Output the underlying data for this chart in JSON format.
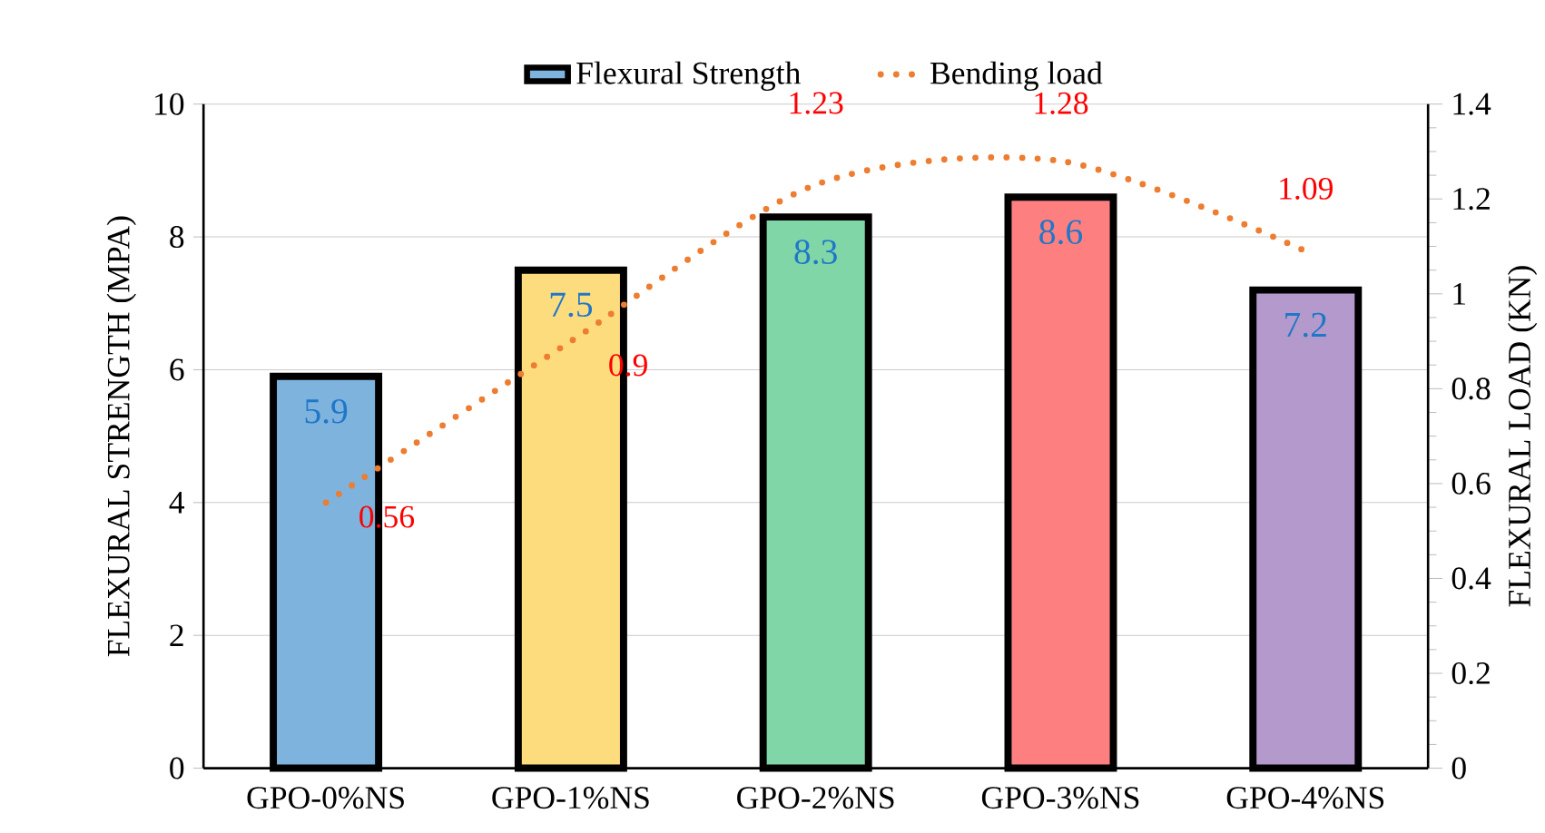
{
  "chart_data": {
    "type": "bar",
    "categories": [
      "GPO-0%NS",
      "GPO-1%NS",
      "GPO-2%NS",
      "GPO-3%NS",
      "GPO-4%NS"
    ],
    "ylabel": "FLEXURAL STRENGTH (MPA)",
    "y2label": "FLEXURAL LOAD (KN)",
    "series": [
      {
        "name": "Flexural Strength",
        "colors": [
          "#7eb3dd",
          "#fddc7e",
          "#80d6a6",
          "#fd7f7f",
          "#b49acc"
        ],
        "values": [
          5.9,
          7.5,
          8.3,
          8.6,
          7.2
        ]
      },
      {
        "name": "Bending load",
        "type": "line",
        "axis": "y2",
        "color": "#ed7d31",
        "line_style": "dotted",
        "marker": "none",
        "values": [
          0.56,
          0.9,
          1.23,
          1.28,
          1.09
        ]
      }
    ],
    "ylim": [
      0,
      10
    ],
    "yticks": [
      0,
      2,
      4,
      6,
      8,
      10
    ],
    "y2lim": [
      0,
      1.4
    ],
    "y2ticks": [
      0,
      0.2,
      0.4,
      0.6,
      0.8,
      1,
      1.2,
      1.4
    ],
    "grid": "y",
    "legend": "top",
    "data_labels": true
  }
}
